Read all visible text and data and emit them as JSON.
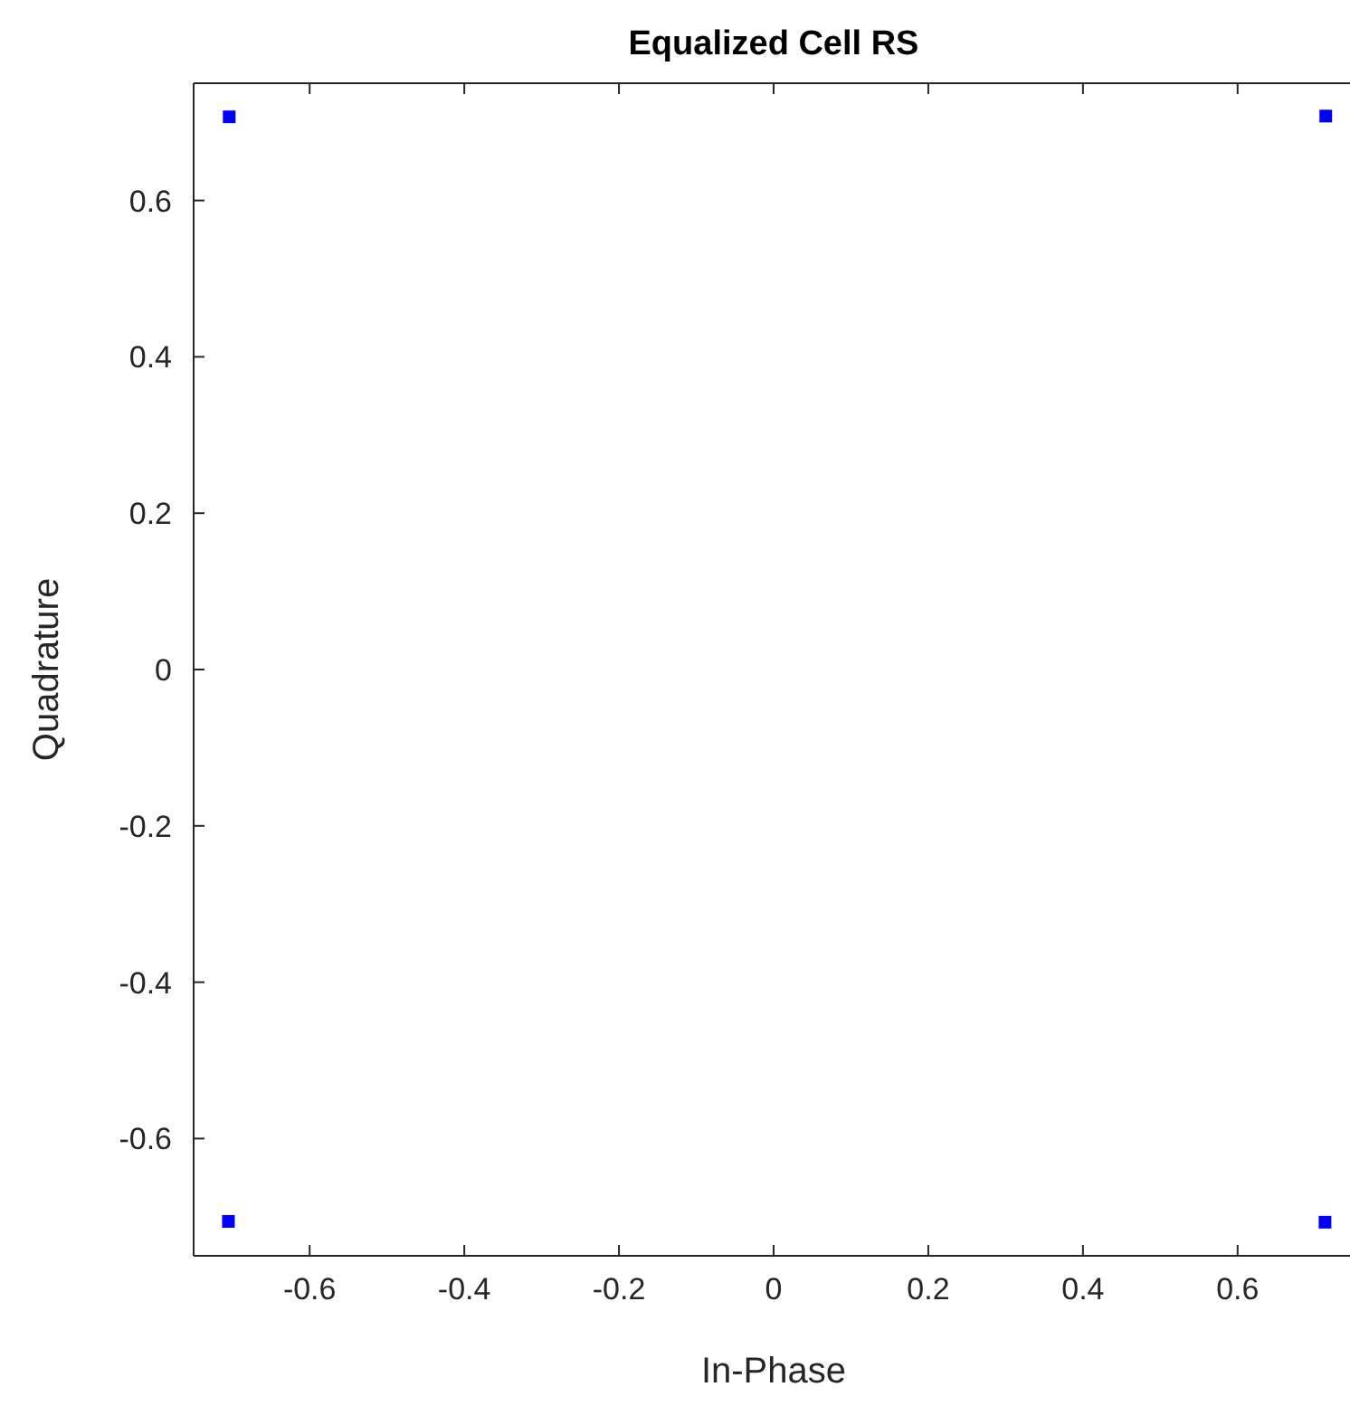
{
  "chart_data": {
    "type": "scatter",
    "title": "Equalized Cell RS",
    "xlabel": "In-Phase",
    "ylabel": "Quadrature",
    "series": [
      {
        "color": "#0000ff",
        "x": [
          -0.704,
          0.713,
          0.714,
          -0.705
        ],
        "values": [
          0.707,
          -0.707,
          0.708,
          -0.706
        ]
      }
    ],
    "xlim": [
      -0.75,
      0.75
    ],
    "ylim": [
      -0.75,
      0.75
    ],
    "xticks": [
      -0.6,
      -0.4,
      -0.2,
      0,
      0.2,
      0.4,
      0.6
    ],
    "yticks": [
      -0.6,
      -0.4,
      -0.2,
      0,
      0.2,
      0.4,
      0.6
    ],
    "marker": "square",
    "grid": false
  }
}
